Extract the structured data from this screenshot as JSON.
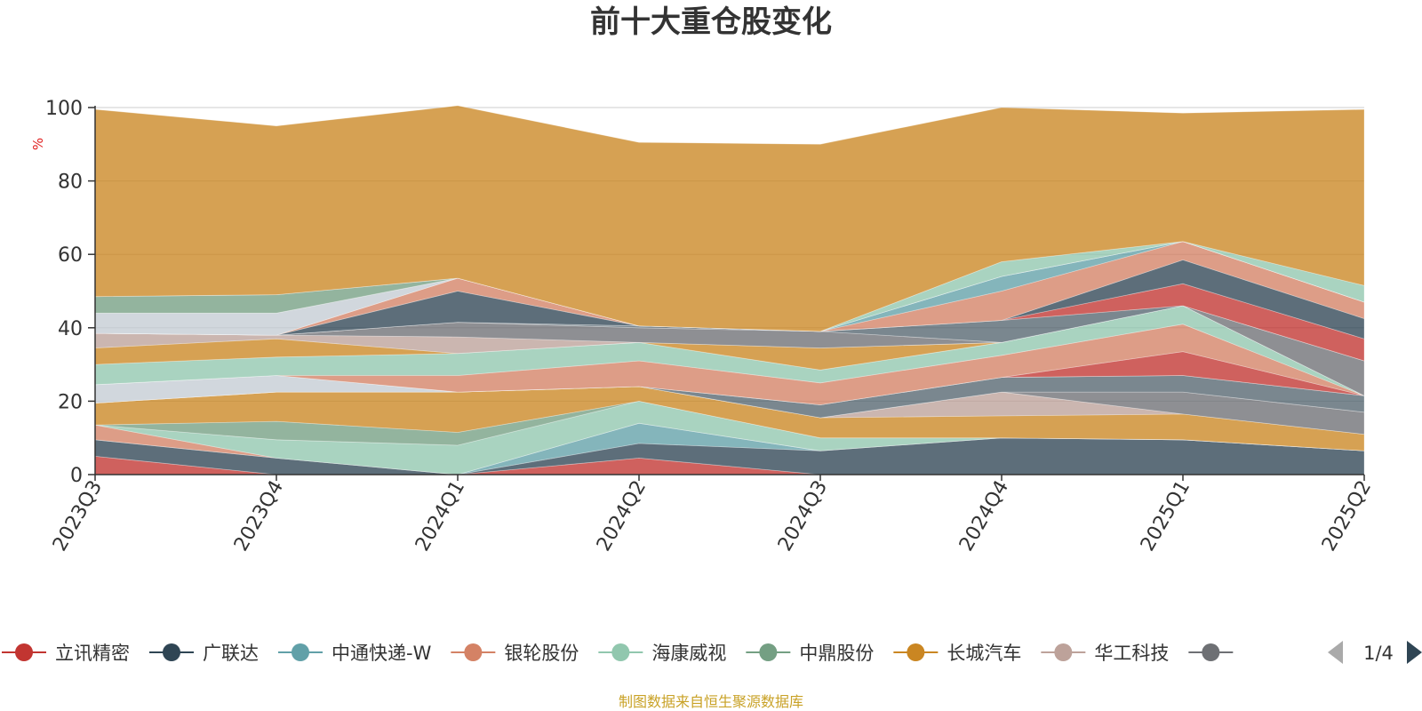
{
  "chart_data": {
    "type": "area",
    "stacked": true,
    "title": "前十大重仓股变化",
    "ylabel": "%",
    "xlabel": "",
    "ylim": [
      0,
      100
    ],
    "yticks": [
      "0",
      "20",
      "40",
      "60",
      "80",
      "100"
    ],
    "categories": [
      "2023Q3",
      "2023Q4",
      "2024Q1",
      "2024Q2",
      "2024Q3",
      "2024Q4",
      "2025Q1",
      "2025Q2"
    ],
    "grid": true,
    "series": [
      {
        "name": "立讯精密",
        "color": "#c23531",
        "values": [
          5,
          0,
          0,
          4.5,
          0,
          0,
          0,
          0
        ]
      },
      {
        "name": "广联达",
        "color": "#2f4554",
        "values": [
          4.5,
          4.5,
          0,
          4,
          6.5,
          10,
          9.5,
          6.5
        ]
      },
      {
        "name": "中通快递-W",
        "color": "#61a0a8",
        "values": [
          0,
          0,
          0,
          5.5,
          0,
          0,
          0,
          0
        ]
      },
      {
        "name": "银轮股份",
        "color": "#d48265",
        "values": [
          4,
          0,
          0,
          0,
          0,
          0,
          0,
          0
        ]
      },
      {
        "name": "海康威视",
        "color": "#91c7ae",
        "values": [
          0,
          5,
          8,
          6,
          3.5,
          0,
          0,
          0
        ]
      },
      {
        "name": "中鼎股份",
        "color": "#749f83",
        "values": [
          0,
          5,
          3.5,
          0,
          0,
          0,
          0,
          0
        ]
      },
      {
        "name": "长城汽车",
        "color": "#ca8622",
        "values": [
          6,
          8,
          11,
          4,
          5.5,
          6,
          7,
          4.5
        ]
      },
      {
        "name": "华工科技",
        "color": "#bda29a",
        "values": [
          0,
          0,
          0,
          0,
          0,
          6.5,
          0,
          0
        ]
      },
      {
        "name": "",
        "color": "#6e7074",
        "values": [
          0,
          0,
          0,
          0,
          0,
          0,
          6,
          6
        ]
      },
      {
        "name": "",
        "color": "#546570",
        "values": [
          0,
          0,
          0,
          0,
          3.5,
          4,
          4.5,
          4.5
        ]
      },
      {
        "name": "",
        "color": "#c4ccd3",
        "values": [
          5,
          4.5,
          0,
          0,
          0,
          0,
          0,
          0
        ]
      },
      {
        "name": "",
        "color": "#c23531",
        "values": [
          0,
          0,
          0,
          0,
          0,
          0,
          6.5,
          0
        ]
      },
      {
        "name": "",
        "color": "#d48265",
        "values": [
          0,
          0,
          4.5,
          7,
          6,
          6,
          7.5,
          0
        ]
      },
      {
        "name": "",
        "color": "#91c7ae",
        "values": [
          5.5,
          5,
          6,
          5,
          3.5,
          3.5,
          5,
          0
        ]
      },
      {
        "name": "",
        "color": "#ca8622",
        "values": [
          4.5,
          5,
          0,
          0,
          6,
          0,
          0,
          0
        ]
      },
      {
        "name": "",
        "color": "#bda29a",
        "values": [
          4,
          1,
          4.5,
          0,
          0,
          0,
          0,
          0
        ]
      },
      {
        "name": "",
        "color": "#6e7074",
        "values": [
          0,
          0,
          4,
          4,
          4.5,
          0,
          0,
          9.5
        ]
      },
      {
        "name": "",
        "color": "#546570",
        "values": [
          0,
          0,
          0,
          0.5,
          0,
          6,
          0,
          0
        ]
      },
      {
        "name": "",
        "color": "#c23531",
        "values": [
          0,
          0,
          0,
          0,
          0,
          0,
          6,
          6
        ]
      },
      {
        "name": "",
        "color": "#2f4554",
        "values": [
          0,
          0,
          8.5,
          0,
          0,
          0,
          6.5,
          5.5
        ]
      },
      {
        "name": "",
        "color": "#d48265",
        "values": [
          0,
          0,
          3.5,
          0,
          0,
          8,
          5,
          4.5
        ]
      },
      {
        "name": "",
        "color": "#61a0a8",
        "values": [
          0,
          0,
          0,
          0,
          0,
          4,
          0,
          0
        ]
      },
      {
        "name": "",
        "color": "#c4ccd3",
        "values": [
          5.5,
          6,
          0,
          0,
          0,
          0,
          0,
          0
        ]
      },
      {
        "name": "",
        "color": "#749f83",
        "values": [
          4.5,
          5,
          0,
          0,
          0,
          0,
          0,
          0
        ]
      },
      {
        "name": "",
        "color": "#91c7ae",
        "values": [
          0,
          0,
          0,
          0,
          0,
          4,
          0,
          4.5
        ]
      },
      {
        "name": "",
        "color": "#ca8622",
        "values": [
          51,
          46,
          47,
          50,
          51,
          42,
          35,
          48
        ]
      }
    ]
  },
  "legend": {
    "page": "1/4",
    "more_color": "#6e7074"
  },
  "footer": "制图数据来自恒生聚源数据库"
}
